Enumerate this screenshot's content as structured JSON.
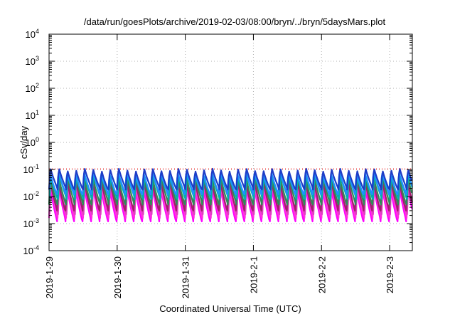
{
  "chart_data": {
    "type": "line",
    "title": "/data/run/goesPlots/archive/2019-02-03/08:00/bryn/../bryn/5daysMars.plot",
    "xlabel": "Coordinated Universal Time (UTC)",
    "ylabel": "cSv/day",
    "yscale": "log",
    "ylim": [
      0.0001,
      10000
    ],
    "y_ticks": [
      {
        "value": 0.0001,
        "base": "10",
        "exp": "-4"
      },
      {
        "value": 0.001,
        "base": "10",
        "exp": "-3"
      },
      {
        "value": 0.01,
        "base": "10",
        "exp": "-2"
      },
      {
        "value": 0.1,
        "base": "10",
        "exp": "-1"
      },
      {
        "value": 1,
        "base": "10",
        "exp": "0"
      },
      {
        "value": 10,
        "base": "10",
        "exp": "1"
      },
      {
        "value": 100,
        "base": "10",
        "exp": "2"
      },
      {
        "value": 1000,
        "base": "10",
        "exp": "3"
      },
      {
        "value": 10000,
        "base": "10",
        "exp": "4"
      }
    ],
    "x_range": [
      "2019-01-29T00:00",
      "2019-02-03T08:00"
    ],
    "x_ticks": [
      "2019-1-29",
      "2019-1-30",
      "2019-1-31",
      "2019-2-1",
      "2019-2-2",
      "2019-2-3"
    ],
    "grid": true,
    "cycles_per_day": 8,
    "reference_line": {
      "value": 0.105,
      "color": "#ff0000",
      "style": "dotted"
    },
    "series": [
      {
        "color": "#ff00ff",
        "peak": 0.03,
        "trough": 0.0012
      },
      {
        "color": "#ff33dd",
        "peak": 0.035,
        "trough": 0.0016
      },
      {
        "color": "#e040c0",
        "peak": 0.042,
        "trough": 0.0022
      },
      {
        "color": "#a0206a",
        "peak": 0.05,
        "trough": 0.003
      },
      {
        "color": "#2e8b57",
        "peak": 0.06,
        "trough": 0.005
      },
      {
        "color": "#00b0b0",
        "peak": 0.075,
        "trough": 0.008
      },
      {
        "color": "#1e90ff",
        "peak": 0.09,
        "trough": 0.012
      },
      {
        "color": "#1d3cc7",
        "peak": 0.115,
        "trough": 0.018
      }
    ]
  }
}
